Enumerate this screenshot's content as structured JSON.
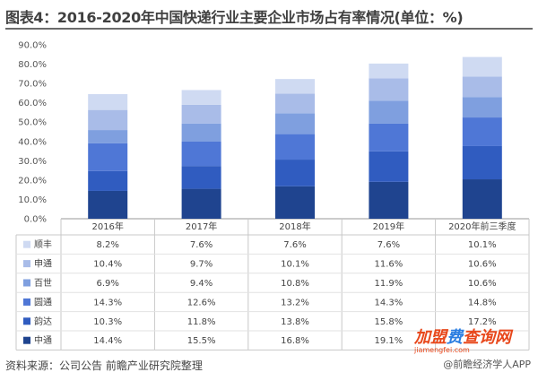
{
  "title": "图表4：2016-2020年中国快递行业主要企业市场占有率情况(单位：%)",
  "source": "资料来源：公司公告 前瞻产业研究院整理",
  "logo_text": "@前瞻经济学人APP",
  "badge": {
    "main_a": "加盟",
    "main_b": "费",
    "main_c": "查询网",
    "url": "jiamengfei.com"
  },
  "colors": {
    "顺丰": "#cfdaf2",
    "申通": "#a9bce8",
    "百世": "#7f9fdf",
    "圆通": "#4f77d6",
    "韵达": "#305cc0",
    "中通": "#1f448f"
  },
  "chart_data": {
    "type": "bar",
    "stacked": true,
    "categories": [
      "2016年",
      "2017年",
      "2018年",
      "2019年",
      "2020年前三季度"
    ],
    "y_tick_labels": [
      "0.0%",
      "10.0%",
      "20.0%",
      "30.0%",
      "40.0%",
      "50.0%",
      "60.0%",
      "70.0%",
      "80.0%",
      "90.0%"
    ],
    "ylim": [
      0,
      90
    ],
    "series": [
      {
        "name": "顺丰",
        "values": [
          8.2,
          7.6,
          7.6,
          7.6,
          10.1
        ],
        "labels": [
          "8.2%",
          "7.6%",
          "7.6%",
          "7.6%",
          "10.1%"
        ]
      },
      {
        "name": "申通",
        "values": [
          10.4,
          9.7,
          10.1,
          11.6,
          10.6
        ],
        "labels": [
          "10.4%",
          "9.7%",
          "10.1%",
          "11.6%",
          "10.6%"
        ]
      },
      {
        "name": "百世",
        "values": [
          6.9,
          9.4,
          10.8,
          11.9,
          10.6
        ],
        "labels": [
          "6.9%",
          "9.4%",
          "10.8%",
          "11.9%",
          "10.6%"
        ]
      },
      {
        "name": "圆通",
        "values": [
          14.3,
          12.6,
          13.2,
          14.3,
          14.8
        ],
        "labels": [
          "14.3%",
          "12.6%",
          "13.2%",
          "14.3%",
          "14.8%"
        ]
      },
      {
        "name": "韵达",
        "values": [
          10.3,
          11.8,
          13.8,
          15.8,
          17.2
        ],
        "labels": [
          "10.3%",
          "11.8%",
          "13.8%",
          "15.8%",
          "17.2%"
        ]
      },
      {
        "name": "中通",
        "values": [
          14.4,
          15.5,
          16.8,
          19.1,
          20.4
        ],
        "labels": [
          "14.4%",
          "15.5%",
          "16.8%",
          "19.1%",
          ""
        ]
      }
    ],
    "grid": false,
    "legend": "table-left"
  }
}
